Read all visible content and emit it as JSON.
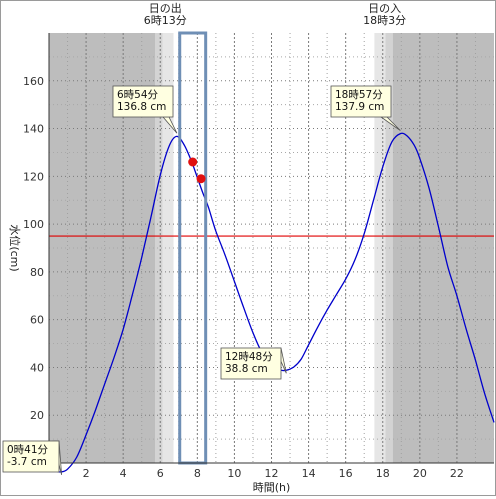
{
  "chart_data": {
    "type": "line",
    "xlabel": "時間(h)",
    "ylabel": "水位(cm)",
    "xlim": [
      0,
      24
    ],
    "ylim": [
      0,
      180
    ],
    "x_ticks": [
      2,
      4,
      6,
      8,
      10,
      12,
      14,
      16,
      18,
      20,
      22
    ],
    "y_ticks": [
      20,
      40,
      60,
      80,
      100,
      120,
      140,
      160
    ],
    "grid": true,
    "series": [
      {
        "color": "#0000cc",
        "x": [
          0,
          0.2,
          0.4,
          0.68,
          1.0,
          1.5,
          2,
          2.5,
          3,
          3.5,
          4,
          4.5,
          5,
          5.5,
          6,
          6.5,
          6.9,
          7.3,
          7.7,
          8.0,
          8.3,
          8.6,
          9.0,
          9.5,
          10,
          10.5,
          11,
          11.5,
          12,
          12.5,
          12.8,
          13.2,
          13.6,
          14,
          14.5,
          15,
          15.5,
          16,
          16.5,
          17,
          17.5,
          18,
          18.5,
          18.95,
          19.3,
          19.7,
          20,
          20.5,
          21,
          21.5,
          22,
          22.5,
          23,
          23.5,
          24
        ],
        "y": [
          2,
          -1.5,
          -3.4,
          -3.7,
          -2.6,
          2.5,
          11.8,
          22,
          33,
          44,
          56,
          70.5,
          86,
          103,
          120.5,
          133,
          136.7,
          133,
          126,
          119.5,
          113,
          107,
          97,
          87,
          76,
          65,
          54.5,
          46,
          40.5,
          38.9,
          38.8,
          40.2,
          43.5,
          49.5,
          57,
          64,
          70.5,
          77,
          85,
          96,
          110,
          124,
          134.5,
          137.9,
          137,
          133,
          127.5,
          115,
          99,
          82.5,
          70,
          56,
          43,
          29,
          17
        ]
      }
    ],
    "threshold_line": {
      "y": 95,
      "color": "#e00000"
    },
    "sun": {
      "sunrise_hour": 6.217,
      "sunset_hour": 18.05,
      "sunrise_label": [
        "日の出",
        "6時13分"
      ],
      "sunset_label": [
        "日の入",
        "18時3分"
      ]
    },
    "current_window": {
      "x": [
        7.05,
        8.45
      ],
      "color": "#6f8fb5"
    },
    "markers": [
      {
        "x": 7.75,
        "y": 126,
        "color": "#e01010"
      },
      {
        "x": 8.2,
        "y": 119,
        "color": "#e01010"
      }
    ],
    "annotations": [
      {
        "lines": [
          "6時54分",
          "136.8 cm"
        ],
        "x": 6.9,
        "y": 136.8
      },
      {
        "lines": [
          "18時57分",
          "137.9 cm"
        ],
        "x": 18.95,
        "y": 137.9
      },
      {
        "lines": [
          "12時48分",
          "38.8 cm"
        ],
        "x": 12.8,
        "y": 38.8
      },
      {
        "lines": [
          "0時41分",
          "-3.7 cm"
        ],
        "x": 0.68,
        "y": -3.7
      }
    ]
  }
}
